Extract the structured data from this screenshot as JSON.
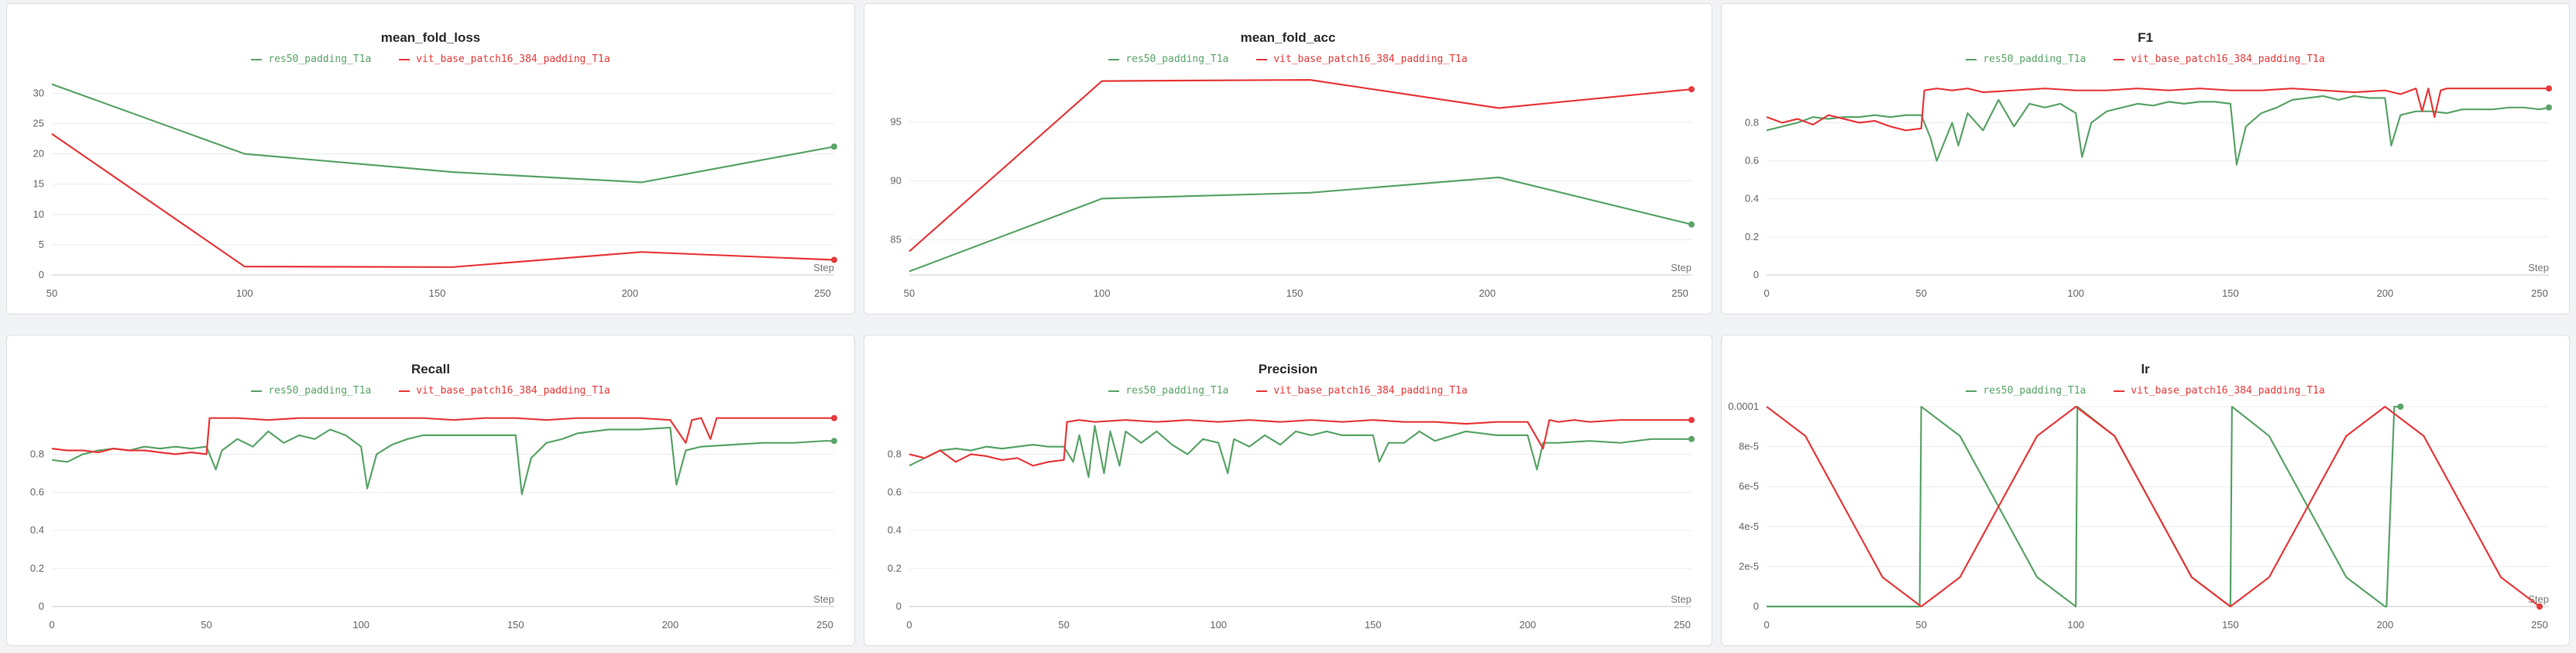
{
  "legend": {
    "series_a": "res50_padding_T1a",
    "series_b": "vit_base_patch16_384_padding_T1a"
  },
  "colors": {
    "series_a": "#5aa469",
    "series_b": "#e8393a",
    "grid": "#ececec",
    "axis": "#c8c8c8"
  },
  "x_axis_label": "Step",
  "chart_data": [
    {
      "type": "line",
      "title": "mean_fold_loss",
      "xlim": [
        50,
        253
      ],
      "ylim": [
        0,
        33
      ],
      "xticks": [
        50,
        100,
        150,
        200,
        250
      ],
      "yticks": [
        0,
        5,
        10,
        15,
        20,
        25,
        30
      ],
      "ytick_labels": [
        "0",
        "5",
        "10",
        "15",
        "20",
        "25",
        "30"
      ],
      "series": [
        {
          "name": "res50_padding_T1a",
          "x": [
            50,
            100,
            154,
            203,
            253
          ],
          "y": [
            31.5,
            20,
            17,
            15.3,
            21.2
          ]
        },
        {
          "name": "vit_base_patch16_384_padding_T1a",
          "x": [
            50,
            100,
            154,
            203,
            253
          ],
          "y": [
            23.3,
            1.4,
            1.3,
            3.8,
            2.5
          ]
        }
      ]
    },
    {
      "type": "line",
      "title": "mean_fold_acc",
      "xlim": [
        50,
        253
      ],
      "ylim": [
        82,
        99
      ],
      "xticks": [
        50,
        100,
        150,
        200,
        250
      ],
      "yticks": [
        85,
        90,
        95
      ],
      "ytick_labels": [
        "85",
        "90",
        "95"
      ],
      "series": [
        {
          "name": "res50_padding_T1a",
          "x": [
            50,
            100,
            154,
            203,
            253
          ],
          "y": [
            82.3,
            88.5,
            89,
            90.3,
            86.3
          ]
        },
        {
          "name": "vit_base_patch16_384_padding_T1a",
          "x": [
            50,
            100,
            154,
            203,
            253
          ],
          "y": [
            84,
            98.5,
            98.6,
            96.2,
            97.8
          ]
        }
      ]
    },
    {
      "type": "line",
      "title": "F1",
      "xlim": [
        0,
        253
      ],
      "ylim": [
        0,
        1.05
      ],
      "xticks": [
        0,
        50,
        100,
        150,
        200,
        250
      ],
      "yticks": [
        0,
        0.2,
        0.4,
        0.6,
        0.8
      ],
      "ytick_labels": [
        "0",
        "0.2",
        "0.4",
        "0.6",
        "0.8"
      ],
      "series": [
        {
          "name": "res50_padding_T1a",
          "x": [
            0,
            5,
            10,
            15,
            20,
            25,
            30,
            35,
            40,
            45,
            50,
            53,
            55,
            60,
            62,
            65,
            70,
            75,
            80,
            85,
            90,
            95,
            100,
            102,
            105,
            110,
            115,
            120,
            125,
            130,
            135,
            140,
            145,
            150,
            152,
            155,
            160,
            165,
            170,
            175,
            180,
            185,
            190,
            195,
            200,
            202,
            205,
            210,
            215,
            220,
            225,
            230,
            235,
            240,
            245,
            250,
            253
          ],
          "y": [
            0.76,
            0.78,
            0.8,
            0.83,
            0.82,
            0.83,
            0.83,
            0.84,
            0.83,
            0.84,
            0.84,
            0.72,
            0.6,
            0.8,
            0.68,
            0.85,
            0.76,
            0.92,
            0.78,
            0.9,
            0.88,
            0.9,
            0.85,
            0.62,
            0.8,
            0.86,
            0.88,
            0.9,
            0.89,
            0.91,
            0.9,
            0.91,
            0.91,
            0.9,
            0.58,
            0.78,
            0.85,
            0.88,
            0.92,
            0.93,
            0.94,
            0.92,
            0.94,
            0.93,
            0.93,
            0.68,
            0.84,
            0.86,
            0.86,
            0.85,
            0.87,
            0.87,
            0.87,
            0.88,
            0.88,
            0.87,
            0.88
          ]
        },
        {
          "name": "vit_base_patch16_384_padding_T1a",
          "x": [
            0,
            5,
            10,
            15,
            20,
            25,
            30,
            35,
            40,
            45,
            50,
            51,
            55,
            60,
            65,
            70,
            80,
            90,
            100,
            110,
            120,
            130,
            140,
            150,
            160,
            170,
            180,
            190,
            200,
            205,
            210,
            212,
            214,
            216,
            218,
            220,
            230,
            240,
            250,
            253
          ],
          "y": [
            0.83,
            0.8,
            0.82,
            0.79,
            0.84,
            0.82,
            0.8,
            0.81,
            0.78,
            0.76,
            0.77,
            0.97,
            0.98,
            0.97,
            0.98,
            0.96,
            0.97,
            0.98,
            0.97,
            0.97,
            0.98,
            0.97,
            0.98,
            0.97,
            0.97,
            0.98,
            0.97,
            0.96,
            0.97,
            0.95,
            0.98,
            0.86,
            0.98,
            0.83,
            0.97,
            0.98,
            0.98,
            0.98,
            0.98,
            0.98
          ]
        }
      ]
    },
    {
      "type": "line",
      "title": "Recall",
      "xlim": [
        0,
        253
      ],
      "ylim": [
        0,
        1.05
      ],
      "xticks": [
        0,
        50,
        100,
        150,
        200,
        250
      ],
      "yticks": [
        0,
        0.2,
        0.4,
        0.6,
        0.8
      ],
      "ytick_labels": [
        "0",
        "0.2",
        "0.4",
        "0.6",
        "0.8"
      ],
      "series": [
        {
          "name": "res50_padding_T1a",
          "x": [
            0,
            5,
            10,
            15,
            20,
            25,
            30,
            35,
            40,
            45,
            50,
            53,
            55,
            60,
            65,
            70,
            75,
            80,
            85,
            90,
            95,
            100,
            102,
            105,
            110,
            115,
            120,
            130,
            140,
            150,
            152,
            155,
            160,
            165,
            170,
            180,
            190,
            200,
            202,
            205,
            210,
            220,
            230,
            240,
            250,
            253
          ],
          "y": [
            0.77,
            0.76,
            0.8,
            0.82,
            0.83,
            0.82,
            0.84,
            0.83,
            0.84,
            0.83,
            0.84,
            0.72,
            0.82,
            0.88,
            0.84,
            0.92,
            0.86,
            0.9,
            0.88,
            0.93,
            0.9,
            0.84,
            0.62,
            0.8,
            0.85,
            0.88,
            0.9,
            0.9,
            0.9,
            0.9,
            0.59,
            0.78,
            0.86,
            0.88,
            0.91,
            0.93,
            0.93,
            0.94,
            0.64,
            0.82,
            0.84,
            0.85,
            0.86,
            0.86,
            0.87,
            0.87
          ]
        },
        {
          "name": "vit_base_patch16_384_padding_T1a",
          "x": [
            0,
            5,
            10,
            15,
            20,
            25,
            30,
            35,
            40,
            45,
            50,
            51,
            55,
            60,
            70,
            80,
            90,
            100,
            110,
            120,
            130,
            140,
            150,
            160,
            170,
            180,
            190,
            200,
            205,
            207,
            210,
            213,
            215,
            220,
            230,
            240,
            250,
            253
          ],
          "y": [
            0.83,
            0.82,
            0.82,
            0.81,
            0.83,
            0.82,
            0.82,
            0.81,
            0.8,
            0.81,
            0.8,
            0.99,
            0.99,
            0.99,
            0.98,
            0.99,
            0.99,
            0.99,
            0.99,
            0.99,
            0.98,
            0.99,
            0.99,
            0.98,
            0.99,
            0.99,
            0.99,
            0.98,
            0.86,
            0.98,
            0.99,
            0.88,
            0.99,
            0.99,
            0.99,
            0.99,
            0.99,
            0.99
          ]
        }
      ]
    },
    {
      "type": "line",
      "title": "Precision",
      "xlim": [
        0,
        253
      ],
      "ylim": [
        0,
        1.05
      ],
      "xticks": [
        0,
        50,
        100,
        150,
        200,
        250
      ],
      "yticks": [
        0,
        0.2,
        0.4,
        0.6,
        0.8
      ],
      "ytick_labels": [
        "0",
        "0.2",
        "0.4",
        "0.6",
        "0.8"
      ],
      "series": [
        {
          "name": "res50_padding_T1a",
          "x": [
            0,
            5,
            10,
            15,
            20,
            25,
            30,
            35,
            40,
            45,
            50,
            53,
            55,
            58,
            60,
            63,
            65,
            68,
            70,
            75,
            80,
            85,
            90,
            95,
            100,
            103,
            105,
            110,
            115,
            120,
            125,
            130,
            135,
            140,
            145,
            150,
            152,
            155,
            160,
            165,
            170,
            180,
            190,
            200,
            203,
            205,
            210,
            220,
            230,
            240,
            250,
            253
          ],
          "y": [
            0.74,
            0.78,
            0.82,
            0.83,
            0.82,
            0.84,
            0.83,
            0.84,
            0.85,
            0.84,
            0.84,
            0.76,
            0.9,
            0.68,
            0.95,
            0.7,
            0.92,
            0.74,
            0.92,
            0.86,
            0.92,
            0.85,
            0.8,
            0.88,
            0.86,
            0.7,
            0.88,
            0.84,
            0.9,
            0.85,
            0.92,
            0.9,
            0.92,
            0.9,
            0.9,
            0.9,
            0.76,
            0.86,
            0.86,
            0.92,
            0.87,
            0.92,
            0.9,
            0.9,
            0.72,
            0.86,
            0.86,
            0.87,
            0.86,
            0.88,
            0.88,
            0.88
          ]
        },
        {
          "name": "vit_base_patch16_384_padding_T1a",
          "x": [
            0,
            5,
            10,
            15,
            20,
            25,
            30,
            35,
            40,
            45,
            50,
            51,
            55,
            60,
            70,
            80,
            90,
            100,
            110,
            120,
            130,
            140,
            150,
            160,
            170,
            180,
            190,
            200,
            205,
            207,
            210,
            215,
            220,
            230,
            240,
            250,
            253
          ],
          "y": [
            0.8,
            0.78,
            0.82,
            0.76,
            0.8,
            0.79,
            0.77,
            0.78,
            0.74,
            0.76,
            0.77,
            0.97,
            0.98,
            0.97,
            0.98,
            0.97,
            0.98,
            0.97,
            0.98,
            0.97,
            0.98,
            0.97,
            0.98,
            0.97,
            0.97,
            0.96,
            0.97,
            0.97,
            0.83,
            0.98,
            0.97,
            0.98,
            0.97,
            0.98,
            0.98,
            0.98,
            0.98
          ]
        }
      ]
    },
    {
      "type": "line",
      "title": "lr",
      "xlim": [
        0,
        253
      ],
      "ylim": [
        0,
        0.0001
      ],
      "xticks": [
        0,
        50,
        100,
        150,
        200,
        250
      ],
      "yticks": [
        0,
        2e-05,
        4e-05,
        6e-05,
        8e-05,
        0.0001
      ],
      "ytick_labels": [
        "0",
        "2e-5",
        "4e-5",
        "6e-5",
        "8e-5",
        "0.0001"
      ],
      "series": [
        {
          "name": "res50_padding_T1a",
          "x": [
            0,
            49.5,
            50,
            62.5,
            75,
            87.5,
            100,
            100.5,
            112.5,
            125,
            137.5,
            150,
            150.5,
            162.5,
            175,
            187.5,
            200,
            200.5,
            203,
            205
          ],
          "y": [
            0,
            0,
            0.0001,
            8.54e-05,
            5e-05,
            1.46e-05,
            0,
            0.0001,
            8.54e-05,
            5e-05,
            1.46e-05,
            0,
            0.0001,
            8.54e-05,
            5e-05,
            1.46e-05,
            0,
            0,
            0.0001,
            0.0001
          ]
        },
        {
          "name": "vit_base_patch16_384_padding_T1a",
          "x": [
            0,
            12.5,
            25,
            37.5,
            50,
            62.5,
            75,
            87.5,
            100,
            112.5,
            125,
            137.5,
            150,
            162.5,
            175,
            187.5,
            200,
            212.5,
            225,
            237.5,
            250
          ],
          "y": [
            0.0001,
            8.54e-05,
            5e-05,
            1.46e-05,
            0,
            1.46e-05,
            5e-05,
            8.54e-05,
            0.0001,
            8.54e-05,
            5e-05,
            1.46e-05,
            0,
            1.46e-05,
            5e-05,
            8.54e-05,
            0.0001,
            8.54e-05,
            5e-05,
            1.46e-05,
            0
          ]
        }
      ]
    }
  ]
}
